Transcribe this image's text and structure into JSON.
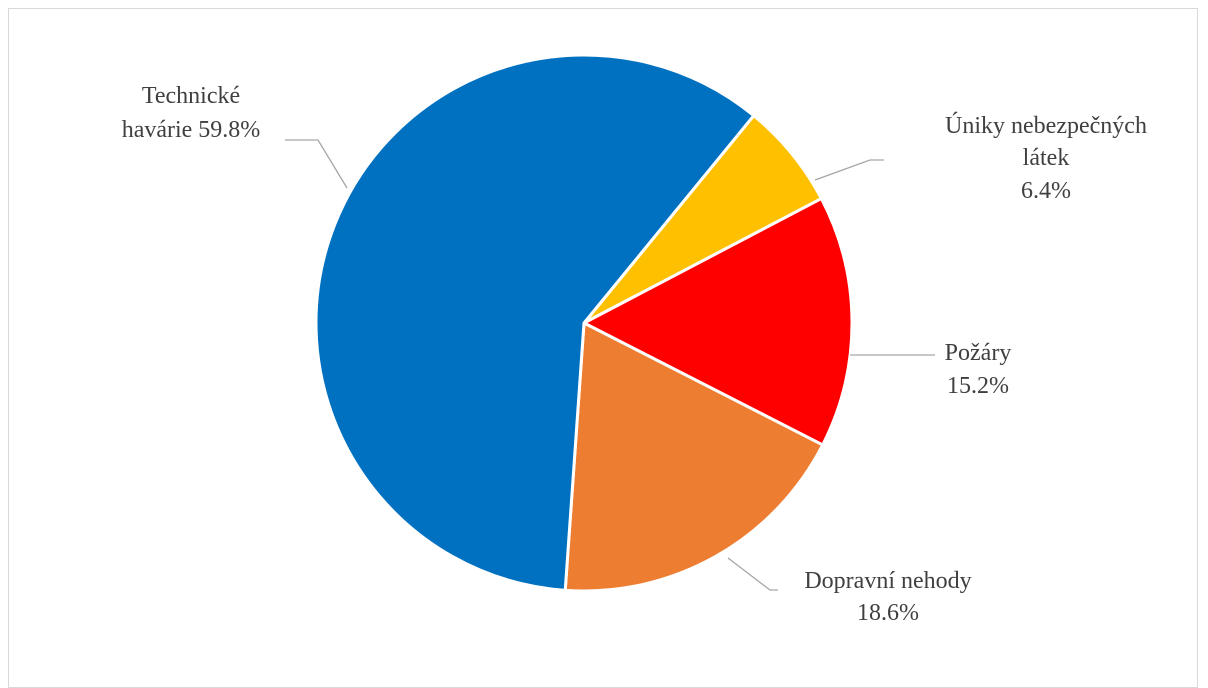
{
  "chart_data": {
    "type": "pie",
    "title": "",
    "legend": "none",
    "slices": [
      {
        "label_lines": [
          "Úniky nebezpečných",
          "látek",
          "6.4%"
        ],
        "category": "Úniky nebezpečných látek",
        "value": 6.4,
        "color": "#ffc000"
      },
      {
        "label_lines": [
          "Požáry",
          "15.2%"
        ],
        "category": "Požáry",
        "value": 15.2,
        "color": "#ff0000"
      },
      {
        "label_lines": [
          "Dopravní nehody",
          "18.6%"
        ],
        "category": "Dopravní nehody",
        "value": 18.6,
        "color": "#ed7d31"
      },
      {
        "label_lines": [
          "Technické",
          "havárie 59.8%"
        ],
        "category": "Technické havárie",
        "value": 59.8,
        "color": "#0070c0"
      }
    ]
  }
}
